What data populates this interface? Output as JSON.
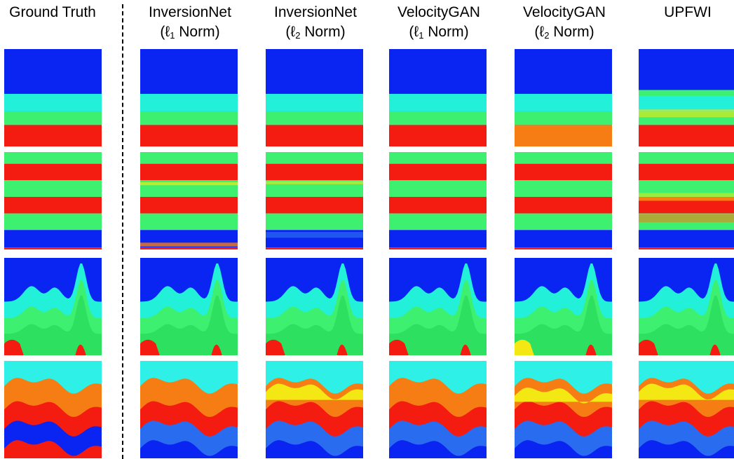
{
  "figure": {
    "columns": [
      {
        "id": "gt",
        "line1": "Ground Truth",
        "norm_prefix": "",
        "norm_sub": "",
        "norm_suffix": ""
      },
      {
        "id": "inv1",
        "line1": "InversionNet",
        "norm_prefix": "(ℓ",
        "norm_sub": "1",
        "norm_suffix": " Norm)"
      },
      {
        "id": "inv2",
        "line1": "InversionNet",
        "norm_prefix": "(ℓ",
        "norm_sub": "2",
        "norm_suffix": " Norm)"
      },
      {
        "id": "vg1",
        "line1": "VelocityGAN",
        "norm_prefix": "(ℓ",
        "norm_sub": "1",
        "norm_suffix": " Norm)"
      },
      {
        "id": "vg2",
        "line1": "VelocityGAN",
        "norm_prefix": "(ℓ",
        "norm_sub": "2",
        "norm_suffix": " Norm)"
      },
      {
        "id": "upf",
        "line1": "UPFWI",
        "norm_prefix": "",
        "norm_sub": "",
        "norm_suffix": ""
      }
    ],
    "rows": [
      "flat-layers-a",
      "flat-layers-b",
      "curved-layers-a",
      "curved-layers-b"
    ],
    "colors": {
      "blue": "#0a24f2",
      "cyan": "#22f0d8",
      "green": "#3ef070",
      "red": "#f41b10",
      "orange": "#f57d14",
      "teal": "#2ef0e6",
      "yellow": "#f4e814",
      "lightblue": "#2a6cf0"
    }
  }
}
